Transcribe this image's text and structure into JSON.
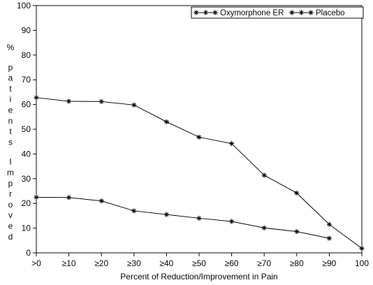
{
  "chart_data": {
    "type": "line",
    "title": "",
    "xlabel": "Percent of Reduction/Improvement in Pain",
    "ylabel": "% patients Improved",
    "ylim": [
      0,
      100
    ],
    "yticks": [
      0,
      10,
      20,
      30,
      40,
      50,
      60,
      70,
      80,
      90,
      100
    ],
    "categories": [
      ">0",
      "≥10",
      "≥20",
      "≥30",
      "≥40",
      "≥50",
      "≥60",
      "≥70",
      "≥80",
      "≥90",
      "100"
    ],
    "grid": false,
    "legend_position": "top-right",
    "series": [
      {
        "name": "Oxymorphone ER",
        "color": "#000000",
        "marker": "star",
        "values": [
          62.8,
          61.3,
          61.2,
          59.8,
          53.0,
          46.8,
          44.2,
          31.4,
          24.2,
          11.5,
          1.8
        ]
      },
      {
        "name": "Placebo",
        "color": "#000000",
        "marker": "star",
        "values": [
          22.5,
          22.4,
          21.0,
          17.0,
          15.5,
          14.0,
          12.7,
          10.1,
          8.6,
          5.9,
          null
        ]
      }
    ]
  }
}
